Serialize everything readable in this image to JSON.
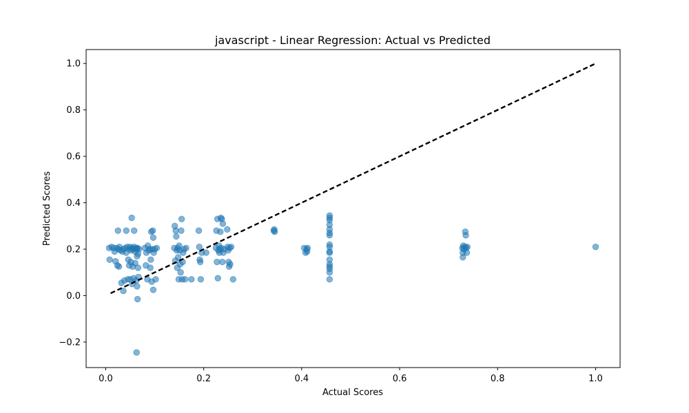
{
  "chart_data": {
    "type": "scatter",
    "title": "javascript - Linear Regression: Actual vs Predicted",
    "xlabel": "Actual Scores",
    "ylabel": "Predicted Scores",
    "xlim": [
      -0.04,
      1.05
    ],
    "ylim": [
      -0.31,
      1.06
    ],
    "xticks": [
      0.0,
      0.2,
      0.4,
      0.6,
      0.8,
      1.0
    ],
    "xtick_labels": [
      "0.0",
      "0.2",
      "0.4",
      "0.6",
      "0.8",
      "1.0"
    ],
    "yticks": [
      -0.2,
      0.0,
      0.2,
      0.4,
      0.6,
      0.8,
      1.0
    ],
    "ytick_labels": [
      "−0.2",
      "0.0",
      "0.2",
      "0.4",
      "0.6",
      "0.8",
      "1.0"
    ],
    "grid": false,
    "point_color": "#1f77b4",
    "reference_line": {
      "x": [
        0.01,
        1.0
      ],
      "y": [
        0.01,
        1.0
      ],
      "color": "#000000",
      "style": "dashed"
    },
    "points": [
      [
        0.007,
        0.205
      ],
      [
        0.008,
        0.155
      ],
      [
        0.012,
        0.21
      ],
      [
        0.016,
        0.205
      ],
      [
        0.018,
        0.19
      ],
      [
        0.02,
        0.148
      ],
      [
        0.022,
        0.205
      ],
      [
        0.024,
        0.13
      ],
      [
        0.025,
        0.28
      ],
      [
        0.026,
        0.2
      ],
      [
        0.027,
        0.125
      ],
      [
        0.028,
        0.21
      ],
      [
        0.03,
        0.195
      ],
      [
        0.032,
        0.055
      ],
      [
        0.034,
        0.19
      ],
      [
        0.036,
        0.2
      ],
      [
        0.036,
        0.02
      ],
      [
        0.038,
        0.065
      ],
      [
        0.04,
        0.205
      ],
      [
        0.042,
        0.185
      ],
      [
        0.042,
        0.28
      ],
      [
        0.044,
        0.21
      ],
      [
        0.045,
        0.07
      ],
      [
        0.046,
        0.155
      ],
      [
        0.048,
        0.2
      ],
      [
        0.048,
        0.13
      ],
      [
        0.05,
        0.21
      ],
      [
        0.05,
        0.07
      ],
      [
        0.051,
        0.145
      ],
      [
        0.052,
        0.195
      ],
      [
        0.053,
        0.335
      ],
      [
        0.054,
        0.205
      ],
      [
        0.054,
        0.05
      ],
      [
        0.055,
        0.125
      ],
      [
        0.056,
        0.2
      ],
      [
        0.057,
        0.075
      ],
      [
        0.058,
        0.21
      ],
      [
        0.058,
        0.28
      ],
      [
        0.06,
        0.19
      ],
      [
        0.06,
        0.14
      ],
      [
        0.062,
        0.205
      ],
      [
        0.062,
        0.065
      ],
      [
        0.063,
        0.2
      ],
      [
        0.063,
        -0.245
      ],
      [
        0.064,
        0.17
      ],
      [
        0.064,
        0.04
      ],
      [
        0.065,
        -0.015
      ],
      [
        0.065,
        0.205
      ],
      [
        0.066,
        0.12
      ],
      [
        0.066,
        0.18
      ],
      [
        0.067,
        0.08
      ],
      [
        0.068,
        0.2
      ],
      [
        0.08,
        0.205
      ],
      [
        0.082,
        0.13
      ],
      [
        0.083,
        0.185
      ],
      [
        0.085,
        0.07
      ],
      [
        0.086,
        0.215
      ],
      [
        0.088,
        0.195
      ],
      [
        0.09,
        0.2
      ],
      [
        0.091,
        0.12
      ],
      [
        0.092,
        0.155
      ],
      [
        0.093,
        0.275
      ],
      [
        0.094,
        0.06
      ],
      [
        0.095,
        0.2
      ],
      [
        0.096,
        0.28
      ],
      [
        0.097,
        0.25
      ],
      [
        0.097,
        0.025
      ],
      [
        0.098,
        0.185
      ],
      [
        0.1,
        0.2
      ],
      [
        0.102,
        0.07
      ],
      [
        0.104,
        0.205
      ],
      [
        0.14,
        0.205
      ],
      [
        0.141,
        0.3
      ],
      [
        0.142,
        0.15
      ],
      [
        0.143,
        0.28
      ],
      [
        0.144,
        0.255
      ],
      [
        0.145,
        0.195
      ],
      [
        0.146,
        0.12
      ],
      [
        0.147,
        0.205
      ],
      [
        0.148,
        0.165
      ],
      [
        0.149,
        0.07
      ],
      [
        0.15,
        0.215
      ],
      [
        0.151,
        0.195
      ],
      [
        0.152,
        0.135
      ],
      [
        0.153,
        0.1
      ],
      [
        0.154,
        0.28
      ],
      [
        0.155,
        0.33
      ],
      [
        0.156,
        0.07
      ],
      [
        0.157,
        0.145
      ],
      [
        0.158,
        0.185
      ],
      [
        0.16,
        0.2
      ],
      [
        0.162,
        0.07
      ],
      [
        0.164,
        0.205
      ],
      [
        0.175,
        0.07
      ],
      [
        0.19,
        0.28
      ],
      [
        0.191,
        0.21
      ],
      [
        0.192,
        0.155
      ],
      [
        0.193,
        0.145
      ],
      [
        0.194,
        0.07
      ],
      [
        0.196,
        0.185
      ],
      [
        0.205,
        0.185
      ],
      [
        0.225,
        0.205
      ],
      [
        0.226,
        0.28
      ],
      [
        0.227,
        0.145
      ],
      [
        0.228,
        0.33
      ],
      [
        0.229,
        0.075
      ],
      [
        0.23,
        0.195
      ],
      [
        0.231,
        0.215
      ],
      [
        0.232,
        0.185
      ],
      [
        0.233,
        0.2
      ],
      [
        0.234,
        0.275
      ],
      [
        0.235,
        0.335
      ],
      [
        0.236,
        0.205
      ],
      [
        0.237,
        0.33
      ],
      [
        0.238,
        0.145
      ],
      [
        0.239,
        0.31
      ],
      [
        0.24,
        0.185
      ],
      [
        0.242,
        0.2
      ],
      [
        0.248,
        0.285
      ],
      [
        0.249,
        0.21
      ],
      [
        0.25,
        0.195
      ],
      [
        0.251,
        0.145
      ],
      [
        0.252,
        0.125
      ],
      [
        0.253,
        0.205
      ],
      [
        0.254,
        0.135
      ],
      [
        0.256,
        0.21
      ],
      [
        0.26,
        0.07
      ],
      [
        0.343,
        0.28
      ],
      [
        0.344,
        0.285
      ],
      [
        0.345,
        0.275
      ],
      [
        0.405,
        0.205
      ],
      [
        0.408,
        0.185
      ],
      [
        0.41,
        0.2
      ],
      [
        0.411,
        0.19
      ],
      [
        0.412,
        0.205
      ],
      [
        0.457,
        0.345
      ],
      [
        0.457,
        0.335
      ],
      [
        0.457,
        0.325
      ],
      [
        0.457,
        0.305
      ],
      [
        0.457,
        0.285
      ],
      [
        0.457,
        0.27
      ],
      [
        0.457,
        0.26
      ],
      [
        0.457,
        0.22
      ],
      [
        0.457,
        0.21
      ],
      [
        0.457,
        0.19
      ],
      [
        0.457,
        0.185
      ],
      [
        0.457,
        0.155
      ],
      [
        0.457,
        0.135
      ],
      [
        0.457,
        0.125
      ],
      [
        0.457,
        0.115
      ],
      [
        0.457,
        0.1
      ],
      [
        0.457,
        0.07
      ],
      [
        0.728,
        0.205
      ],
      [
        0.729,
        0.185
      ],
      [
        0.729,
        0.165
      ],
      [
        0.73,
        0.215
      ],
      [
        0.731,
        0.2
      ],
      [
        0.733,
        0.21
      ],
      [
        0.734,
        0.275
      ],
      [
        0.735,
        0.26
      ],
      [
        0.736,
        0.205
      ],
      [
        0.737,
        0.185
      ],
      [
        0.738,
        0.21
      ],
      [
        1.0,
        0.21
      ]
    ]
  }
}
